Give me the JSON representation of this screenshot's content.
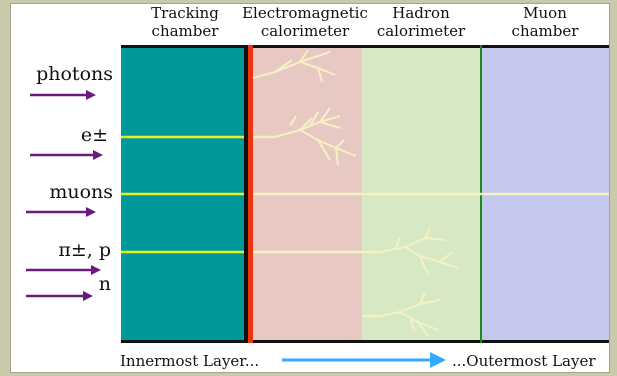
{
  "layers": [
    {
      "line1": "Tracking",
      "line2": "chamber",
      "color": "#009999"
    },
    {
      "line1": "Electromagnetic",
      "line2": "calorimeter",
      "color": "#e8c8c2"
    },
    {
      "line1": "Hadron",
      "line2": "calorimeter",
      "color": "#d6e8c4"
    },
    {
      "line1": "Muon",
      "line2": "chamber",
      "color": "#c3c8ec"
    }
  ],
  "particles": [
    "photons",
    "e±",
    "muons",
    "π±, p",
    "n"
  ],
  "axis": {
    "inner_label": "Innermost Layer...",
    "outer_label": "...Outermost Layer"
  },
  "colors": {
    "arrow": "#6a1a7a",
    "track": "#eeee22",
    "shower": "#f4f2c2",
    "axis_arrow": "#33aaff",
    "boundary_red": "#ee3311",
    "boundary_black": "#111111",
    "muon_boundary": "#1a8a1a"
  }
}
